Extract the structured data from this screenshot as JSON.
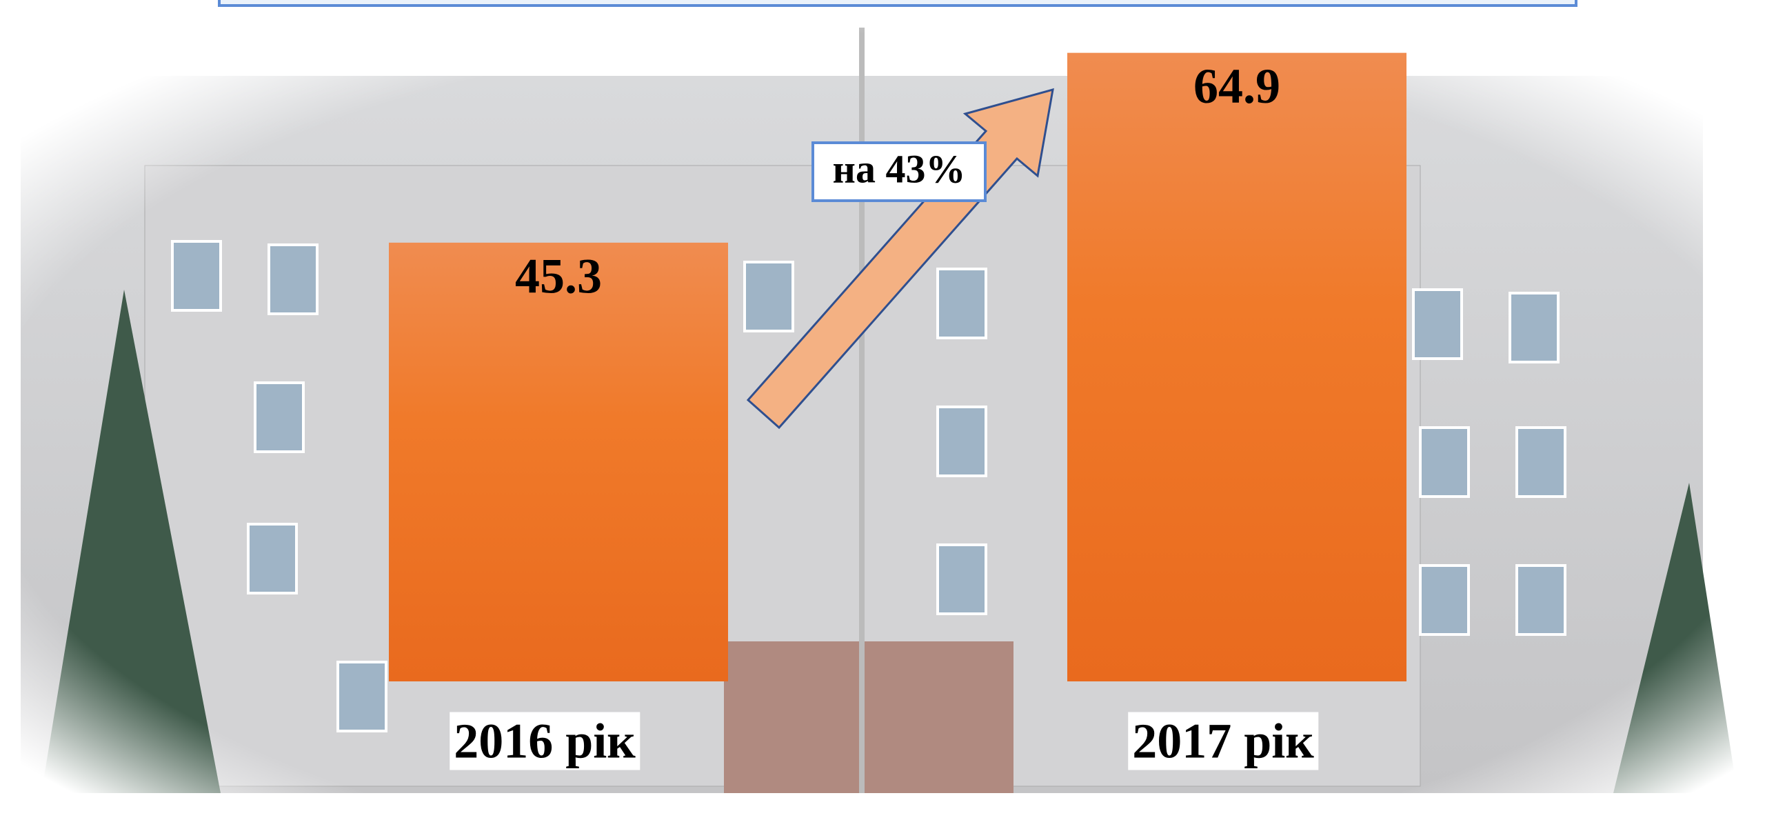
{
  "chart_data": {
    "type": "bar",
    "categories": [
      "2016 рік",
      "2017 рік"
    ],
    "values": [
      45.3,
      64.9
    ],
    "color": "#ef7b2f",
    "ylim": [
      0,
      70
    ],
    "annotation": "на 43%"
  }
}
